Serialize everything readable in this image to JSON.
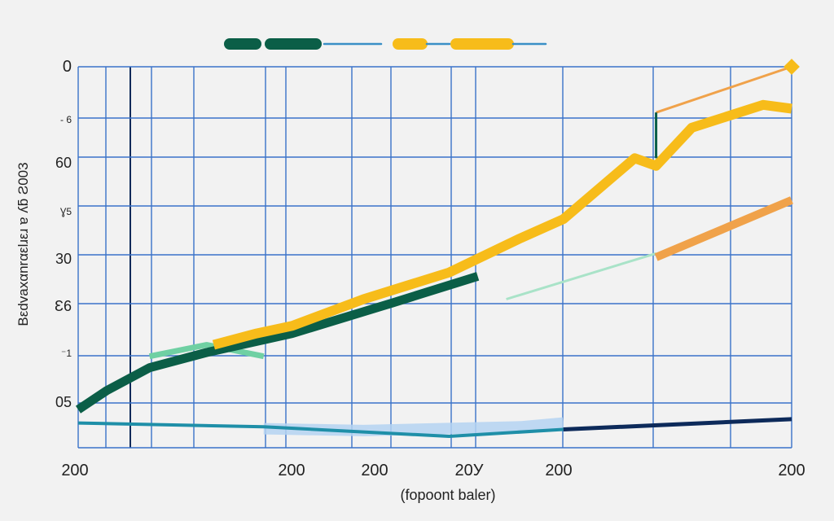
{
  "chart_data": {
    "type": "line",
    "title": "",
    "xlabel": "(fopoont baler)",
    "ylabel": "Bεdvaxαnrαεlɹεɹ ɐ ʎƃ Ƨ003",
    "x_tick_labels": [
      "200",
      "200",
      "200",
      "20У",
      "200",
      "200"
    ],
    "y_tick_labels": [
      "0",
      "- 6",
      "60",
      "Ɣ5",
      "30",
      "Ɛ6",
      "⁻1",
      "05"
    ],
    "grid": true,
    "legend_position": "top-center",
    "xlim": [
      0,
      100
    ],
    "ylim": [
      0,
      100
    ],
    "series": [
      {
        "key": "dark-green",
        "color": "#0b5e47",
        "x": [
          0,
          4,
          10,
          18,
          30,
          44,
          56
        ],
        "y": [
          10,
          15,
          21,
          25,
          30,
          38,
          45
        ]
      },
      {
        "key": "gold",
        "color": "#f7bc1a",
        "x": [
          19,
          25,
          30,
          40,
          52,
          62,
          68,
          78,
          81,
          86,
          96,
          100
        ],
        "y": [
          27,
          30,
          32,
          39,
          46,
          55,
          60,
          76,
          74,
          84,
          90,
          89
        ]
      },
      {
        "key": "orange",
        "color": "#f0a24a",
        "x": [
          81,
          100
        ],
        "y": [
          50,
          65
        ]
      },
      {
        "key": "light-green",
        "color": "#6fd0a3",
        "x": [
          10,
          18,
          26
        ],
        "y": [
          24,
          27,
          24
        ]
      },
      {
        "key": "mint",
        "color": "#a9e3c8",
        "x": [
          60,
          81
        ],
        "y": [
          39,
          51
        ]
      },
      {
        "key": "light-blue",
        "color": "#b5d3f2",
        "x": [
          26,
          40,
          62,
          68
        ],
        "y": [
          5,
          4.5,
          5.5,
          6.5
        ]
      },
      {
        "key": "teal",
        "color": "#1f8fa8",
        "x": [
          0,
          26,
          52,
          68
        ],
        "y": [
          6.5,
          5.5,
          3,
          4.8
        ]
      },
      {
        "key": "navy",
        "color": "#0d2a5a",
        "x": [
          68,
          100
        ],
        "y": [
          4.8,
          7.5
        ]
      },
      {
        "key": "orange-thin",
        "color": "#f0a24a",
        "x": [
          81,
          100
        ],
        "y": [
          88,
          100
        ]
      }
    ],
    "legend": [
      {
        "color": "#0b5e47",
        "style": "thick"
      },
      {
        "color": "#0b5e47",
        "style": "thick"
      },
      {
        "color": "#3a8fc6",
        "style": "thin"
      },
      {
        "color": "#f7bc1a",
        "style": "thick"
      },
      {
        "color": "#3a8fc6",
        "style": "thin"
      },
      {
        "color": "#f7bc1a",
        "style": "thick"
      },
      {
        "color": "#3a8fc6",
        "style": "thin"
      }
    ]
  }
}
